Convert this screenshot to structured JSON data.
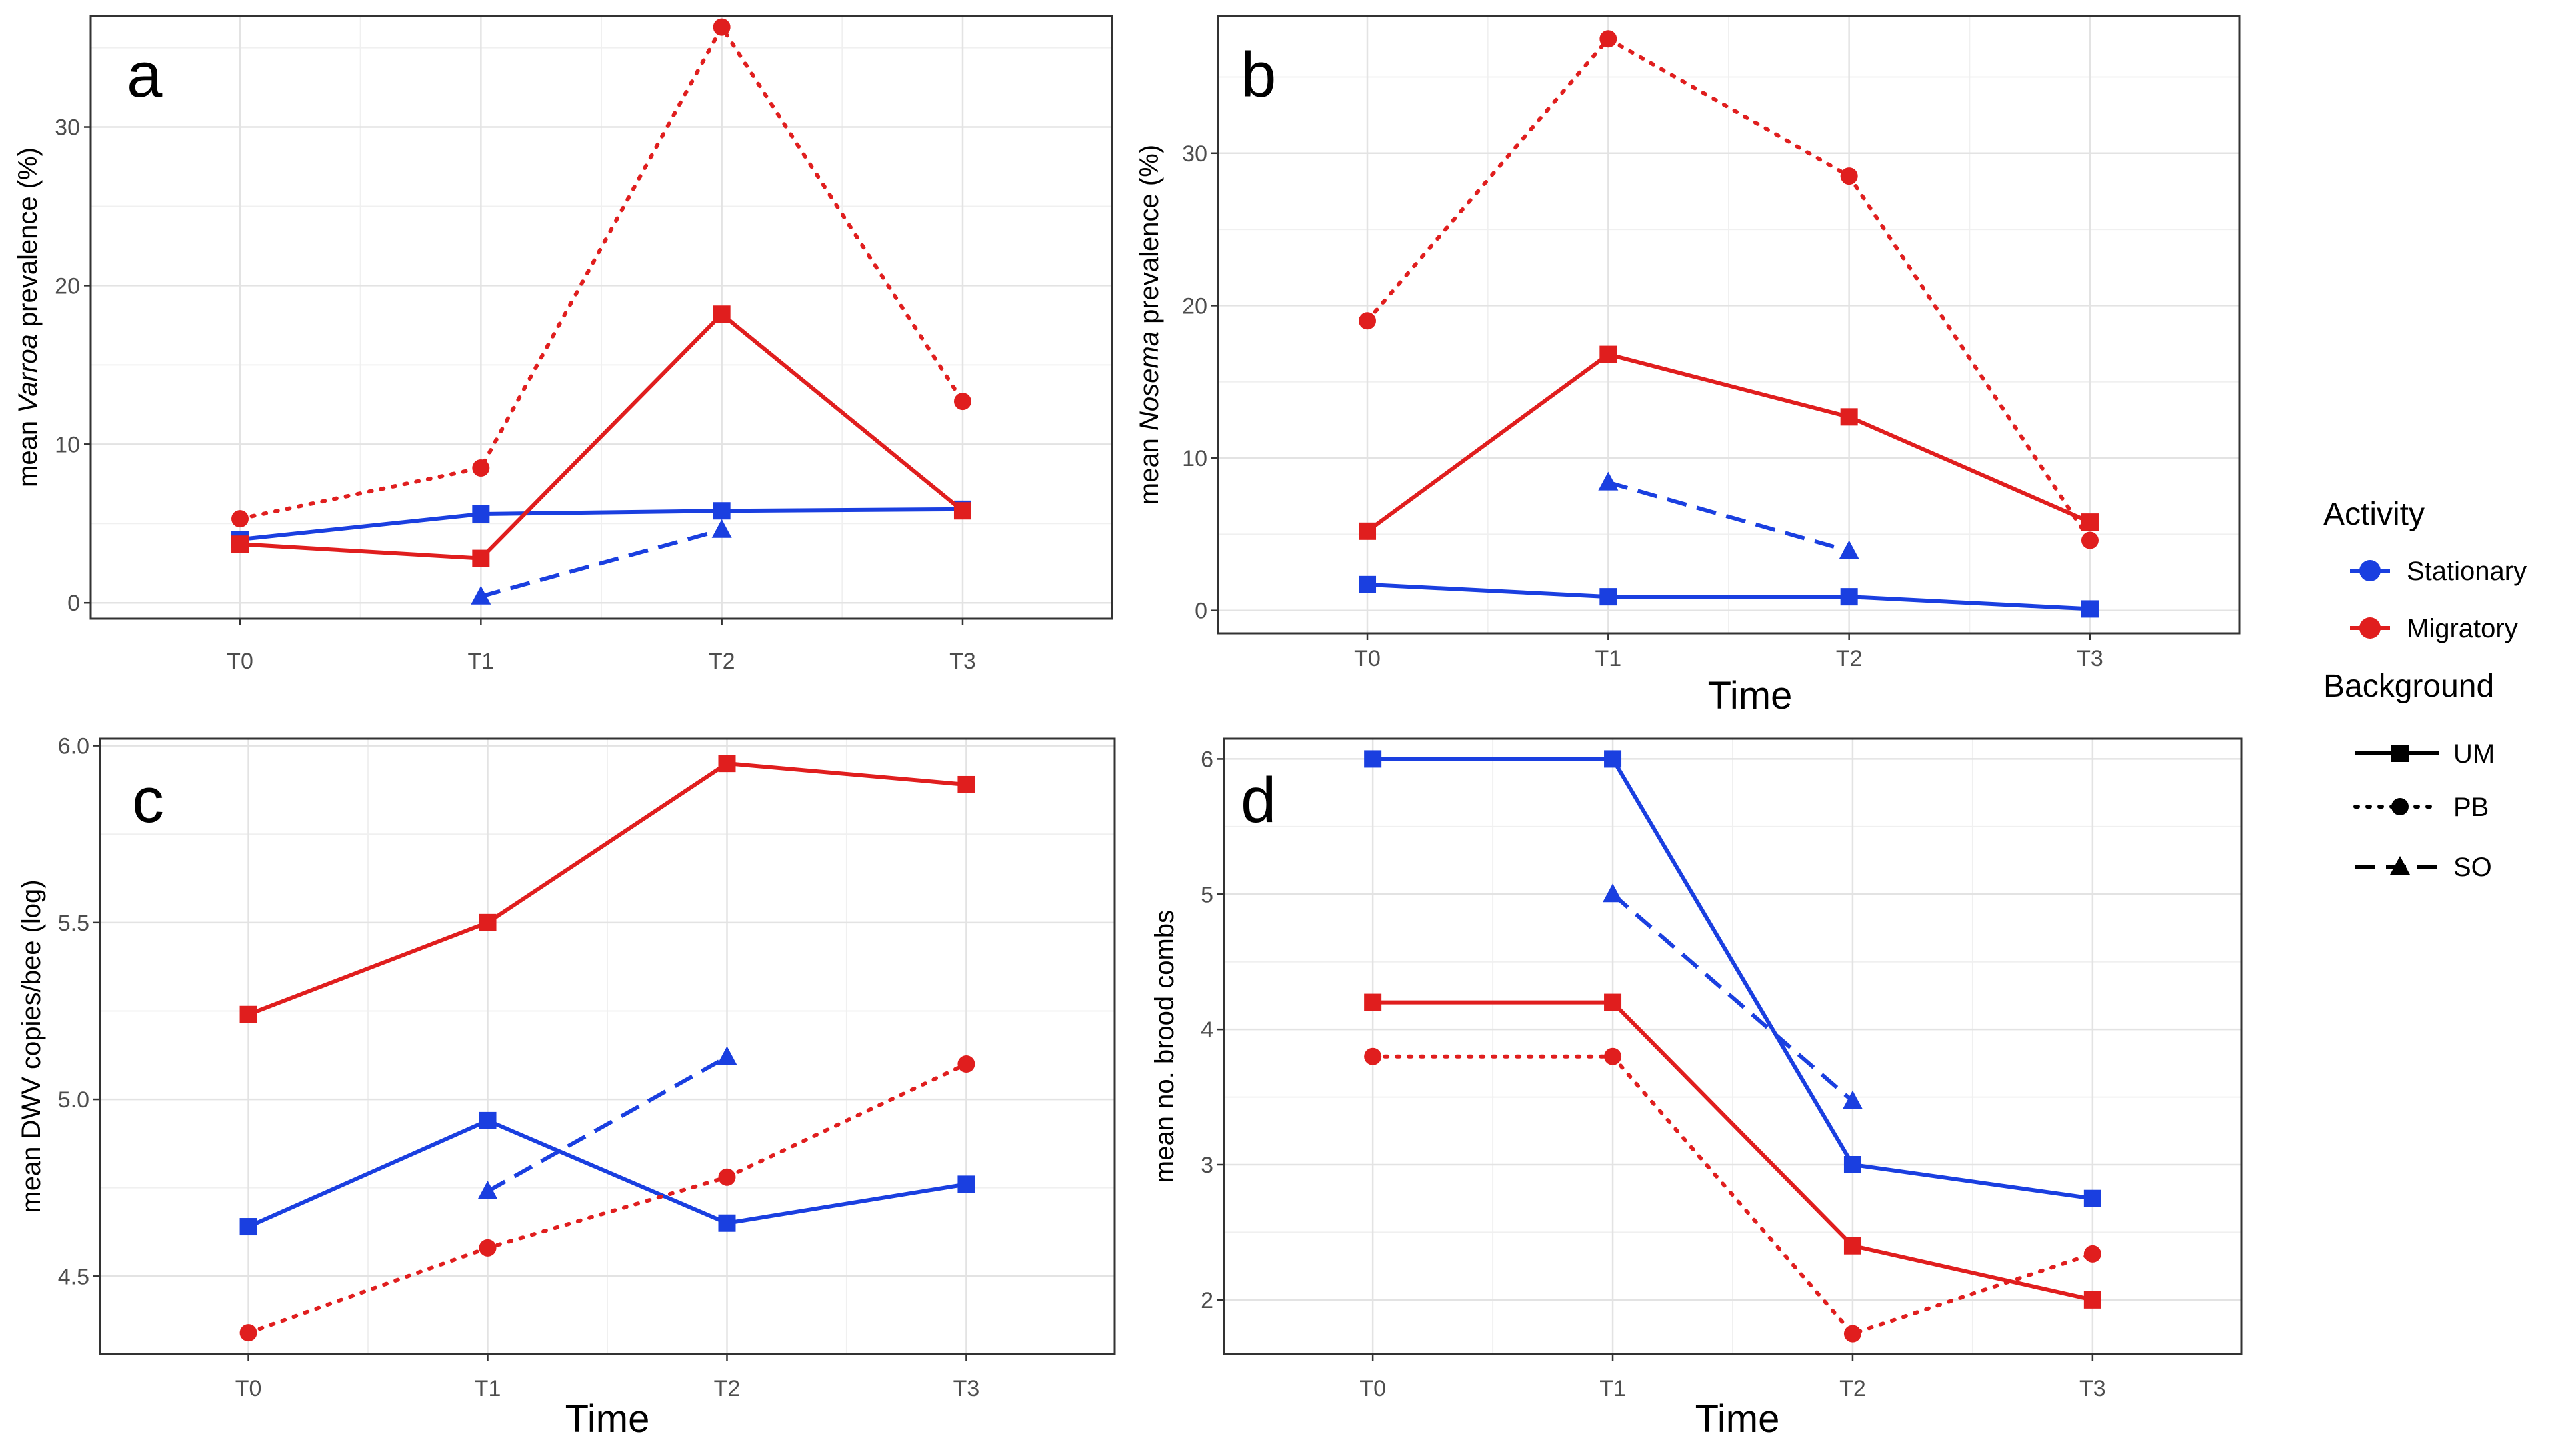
{
  "chart_data": [
    {
      "panel_label": "a",
      "type": "line",
      "x": [
        "T0",
        "T1",
        "T2",
        "T3"
      ],
      "xlabel": "",
      "ylabel_parts": [
        "mean ",
        "Varroa",
        " prevalence (%)"
      ],
      "ylim": [
        -1,
        37
      ],
      "yticks": [
        0,
        10,
        20,
        30
      ],
      "grid": true,
      "series": [
        {
          "activity": "Stationary",
          "background": "UM",
          "color": "#1a3fe0",
          "dash": "solid",
          "marker": "square",
          "values": [
            4.0,
            5.6,
            5.8,
            5.9
          ]
        },
        {
          "activity": "Stationary",
          "background": "SO",
          "color": "#1a3fe0",
          "dash": "dashed",
          "marker": "triangle",
          "values": [
            null,
            0.4,
            4.6,
            null
          ]
        },
        {
          "activity": "Migratory",
          "background": "UM",
          "color": "#e01e1e",
          "dash": "solid",
          "marker": "square",
          "values": [
            3.7,
            2.8,
            18.2,
            5.8
          ]
        },
        {
          "activity": "Migratory",
          "background": "PB",
          "color": "#e01e1e",
          "dash": "dotted",
          "marker": "circle",
          "values": [
            5.3,
            8.5,
            36.3,
            12.7
          ]
        }
      ]
    },
    {
      "panel_label": "b",
      "type": "line",
      "x": [
        "T0",
        "T1",
        "T2",
        "T3"
      ],
      "xlabel": "Time",
      "ylabel_parts": [
        "mean ",
        "Nosema",
        " prevalence (%)"
      ],
      "ylim": [
        -1.5,
        39
      ],
      "yticks": [
        0,
        10,
        20,
        30
      ],
      "grid": true,
      "series": [
        {
          "activity": "Stationary",
          "background": "UM",
          "color": "#1a3fe0",
          "dash": "solid",
          "marker": "square",
          "values": [
            1.7,
            0.9,
            0.9,
            0.1
          ]
        },
        {
          "activity": "Stationary",
          "background": "SO",
          "color": "#1a3fe0",
          "dash": "dashed",
          "marker": "triangle",
          "values": [
            null,
            8.4,
            3.9,
            null
          ]
        },
        {
          "activity": "Migratory",
          "background": "UM",
          "color": "#e01e1e",
          "dash": "solid",
          "marker": "square",
          "values": [
            5.2,
            16.8,
            12.7,
            5.8
          ]
        },
        {
          "activity": "Migratory",
          "background": "PB",
          "color": "#e01e1e",
          "dash": "dotted",
          "marker": "circle",
          "values": [
            19.0,
            37.5,
            28.5,
            4.6
          ]
        }
      ]
    },
    {
      "panel_label": "c",
      "type": "line",
      "x": [
        "T0",
        "T1",
        "T2",
        "T3"
      ],
      "xlabel": "Time",
      "ylabel_parts": [
        "mean DWV copies/bee (log)"
      ],
      "ylim": [
        4.28,
        6.02
      ],
      "yticks": [
        4.5,
        5.0,
        5.5,
        6.0
      ],
      "ytick_labels": [
        "4.5",
        "5.0",
        "5.5",
        "6.0"
      ],
      "grid": true,
      "series": [
        {
          "activity": "Stationary",
          "background": "UM",
          "color": "#1a3fe0",
          "dash": "solid",
          "marker": "square",
          "values": [
            4.64,
            4.94,
            4.65,
            4.76
          ]
        },
        {
          "activity": "Stationary",
          "background": "SO",
          "color": "#1a3fe0",
          "dash": "dashed",
          "marker": "triangle",
          "values": [
            null,
            4.74,
            5.12,
            null
          ]
        },
        {
          "activity": "Migratory",
          "background": "UM",
          "color": "#e01e1e",
          "dash": "solid",
          "marker": "square",
          "values": [
            5.24,
            5.5,
            5.95,
            5.89
          ]
        },
        {
          "activity": "Migratory",
          "background": "PB",
          "color": "#e01e1e",
          "dash": "dotted",
          "marker": "circle",
          "values": [
            4.34,
            4.58,
            4.78,
            5.1
          ]
        }
      ]
    },
    {
      "panel_label": "d",
      "type": "line",
      "x": [
        "T0",
        "T1",
        "T2",
        "T3"
      ],
      "xlabel": "Time",
      "ylabel_parts": [
        "mean no. brood combs"
      ],
      "ylim": [
        1.6,
        6.15
      ],
      "yticks": [
        2,
        3,
        4,
        5,
        6
      ],
      "grid": true,
      "series": [
        {
          "activity": "Stationary",
          "background": "UM",
          "color": "#1a3fe0",
          "dash": "solid",
          "marker": "square",
          "values": [
            6.0,
            6.0,
            3.0,
            2.75
          ]
        },
        {
          "activity": "Stationary",
          "background": "SO",
          "color": "#1a3fe0",
          "dash": "dashed",
          "marker": "triangle",
          "values": [
            null,
            5.0,
            3.47,
            null
          ]
        },
        {
          "activity": "Migratory",
          "background": "UM",
          "color": "#e01e1e",
          "dash": "solid",
          "marker": "square",
          "values": [
            4.2,
            4.2,
            2.4,
            2.0
          ]
        },
        {
          "activity": "Migratory",
          "background": "PB",
          "color": "#e01e1e",
          "dash": "dotted",
          "marker": "circle",
          "values": [
            3.8,
            3.8,
            1.75,
            2.34
          ]
        }
      ]
    }
  ],
  "legend": {
    "activity_title": "Activity",
    "activity_items": [
      {
        "label": "Stationary",
        "color": "#1a3fe0"
      },
      {
        "label": "Migratory",
        "color": "#e01e1e"
      }
    ],
    "background_title": "Background",
    "background_items": [
      {
        "label": "UM",
        "dash": "solid",
        "marker": "square"
      },
      {
        "label": "PB",
        "dash": "dotted",
        "marker": "circle"
      },
      {
        "label": "SO",
        "dash": "dashed",
        "marker": "triangle"
      }
    ]
  }
}
